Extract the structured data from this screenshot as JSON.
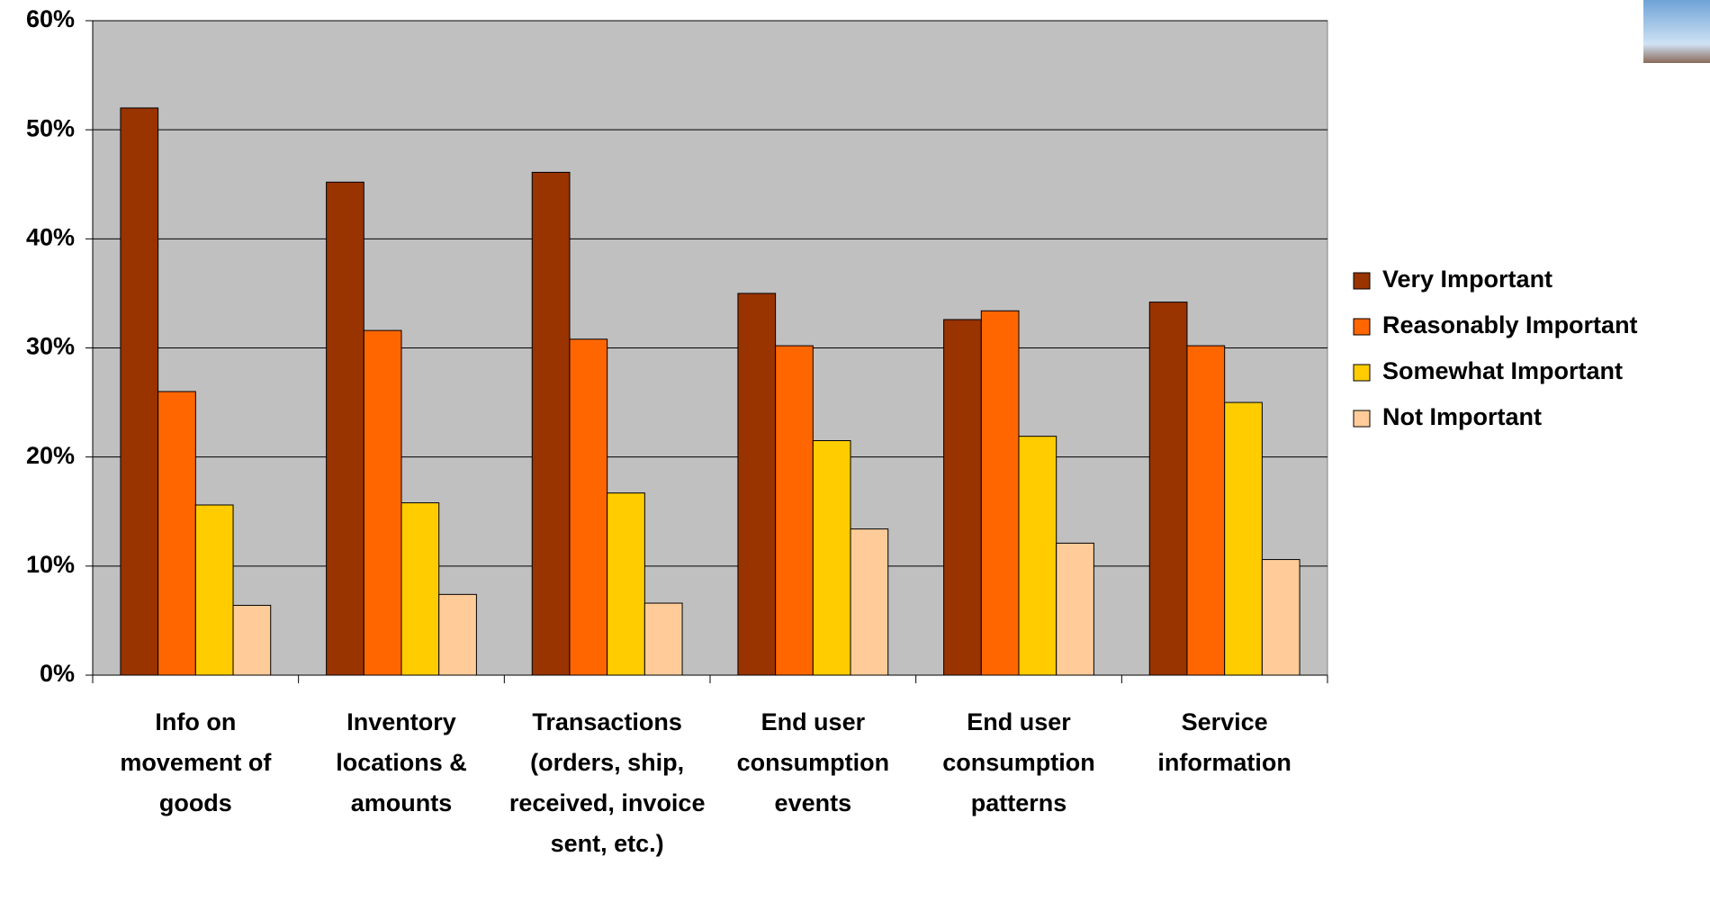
{
  "chart_data": {
    "type": "bar",
    "categories": [
      "Info on movement of goods",
      "Inventory locations & amounts",
      "Transactions (orders, ship, received, invoice sent, etc.)",
      "End user consumption events",
      "End user consumption patterns",
      "Service information"
    ],
    "series": [
      {
        "name": "Very Important",
        "color": "#993300",
        "values": [
          52,
          45.2,
          46.1,
          35,
          32.6,
          34.2
        ]
      },
      {
        "name": "Reasonably Important",
        "color": "#FF6600",
        "values": [
          26,
          31.6,
          30.8,
          30.2,
          33.4,
          30.2
        ]
      },
      {
        "name": "Somewhat Important",
        "color": "#FFCC00",
        "values": [
          15.6,
          15.8,
          16.7,
          21.5,
          21.9,
          25
        ]
      },
      {
        "name": "Not Important",
        "color": "#FFCC99",
        "values": [
          6.4,
          7.4,
          6.6,
          13.4,
          12.1,
          10.6
        ]
      }
    ],
    "ylim": [
      0,
      60
    ],
    "yticks": [
      {
        "value": 0,
        "label": "0%"
      },
      {
        "value": 10,
        "label": "10%"
      },
      {
        "value": 20,
        "label": "20%"
      },
      {
        "value": 30,
        "label": "30%"
      },
      {
        "value": 40,
        "label": "40%"
      },
      {
        "value": 50,
        "label": "50%"
      },
      {
        "value": 60,
        "label": "60%"
      }
    ],
    "grid": true,
    "legend": "right"
  }
}
